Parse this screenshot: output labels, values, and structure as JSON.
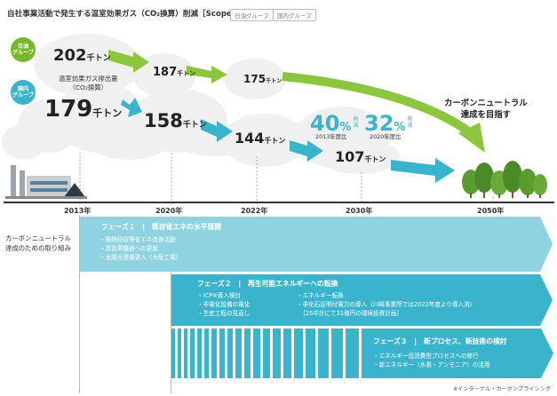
{
  "title": "自社事業活動で発生する温室効果ガス（CO₂換算）削減［Scope1、2］",
  "legend": [
    "日油グループ",
    "国内グループ"
  ],
  "groups": {
    "nof": {
      "label_line1": "日油",
      "label_line2": "グループ",
      "color": "#76b82a"
    },
    "domestic": {
      "label_line1": "国内",
      "label_line2": "グループ",
      "color": "#3ab4cc"
    }
  },
  "emission_caption_line1": "温室効果ガス排出量",
  "emission_caption_line2": "（CO₂換算）",
  "nof_values": [
    {
      "num": "202",
      "unit": "千トン"
    },
    {
      "num": "187",
      "unit": "千トン"
    },
    {
      "num": "175",
      "unit": "千トン"
    }
  ],
  "domestic_values": [
    {
      "num": "179",
      "unit": "千トン"
    },
    {
      "num": "158",
      "unit": "千トン"
    },
    {
      "num": "144",
      "unit": "千トン"
    },
    {
      "num": "107",
      "unit": "千トン"
    }
  ],
  "reduction": [
    {
      "value": "40",
      "pct": "%",
      "word1": "削",
      "word2": "減",
      "note": "2013年度比"
    },
    {
      "value": "32",
      "pct": "%",
      "word1": "削",
      "word2": "減",
      "note": "2020年度比"
    }
  ],
  "goal_line1": "カーボンニュートラル",
  "goal_line2": "達成を目指す",
  "years": [
    "2013年",
    "2020年",
    "2022年",
    "2030年",
    "2050年"
  ],
  "roadmap_label_line1": "カーボンニュートラル",
  "roadmap_label_line2": "達成のための取り組み",
  "phases": [
    {
      "title": "フェーズ１　|　既存省エネの水平展開",
      "items": [
        "・廃熱回収等省エネ改善活動",
        "・高効率機器への更新",
        "・太陽光発電導入（大阪工場）"
      ]
    },
    {
      "title": "フェーズ２　|　再生可能エネルギーへの転換",
      "items_left": [
        "・ICP※導入検討",
        "・非電化設備の電化",
        "・生産工程の見直し"
      ],
      "items_right": [
        "・エネルギー転換",
        "・非化石証明付電力の導入（川崎事業所では2022年度より導入済）",
        "　［25中計にて21億円の環境投資計画］"
      ]
    },
    {
      "title": "フェーズ３　|　新プロセス、新技術の検討",
      "items": [
        "・エネルギー低消費型プロセスへの移行",
        "・新エネルギー（水素・アンモニア）の活用"
      ]
    }
  ],
  "footnote": "※インターナル・カーボンプライシング",
  "colors": {
    "green_arrow": "#8cc63f",
    "blue_arrow": "#3ab4cc",
    "phase": "#8fd3e1",
    "reduction_text": "#3ab4cc"
  }
}
